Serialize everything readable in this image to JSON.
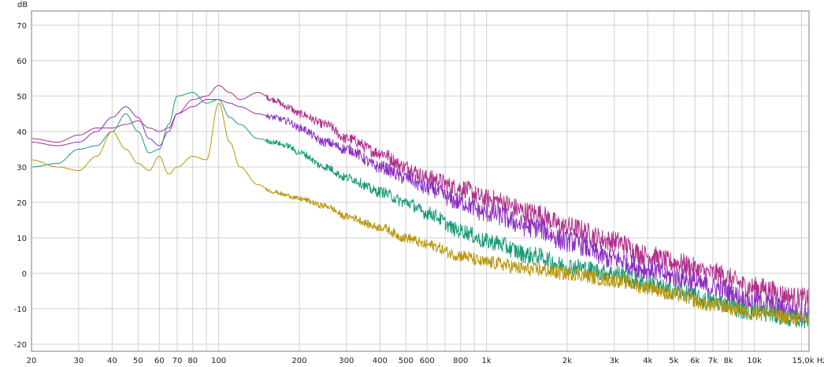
{
  "chart_data": {
    "type": "line",
    "ylabel": "dB",
    "x_scale": "log",
    "xlim": [
      20,
      16000
    ],
    "ylim": [
      -22,
      74
    ],
    "grid": true,
    "legend": "none",
    "yticks": [
      {
        "value": 70,
        "label": "70"
      },
      {
        "value": 60,
        "label": "60"
      },
      {
        "value": 50,
        "label": "50"
      },
      {
        "value": 40,
        "label": "40"
      },
      {
        "value": 30,
        "label": "30"
      },
      {
        "value": 20,
        "label": "20"
      },
      {
        "value": 10,
        "label": "10"
      },
      {
        "value": 0,
        "label": "0"
      },
      {
        "value": -10,
        "label": "-10"
      },
      {
        "value": -20,
        "label": "-20"
      }
    ],
    "xticks": [
      {
        "value": 20,
        "label": "20"
      },
      {
        "value": 30,
        "label": "30"
      },
      {
        "value": 40,
        "label": "40"
      },
      {
        "value": 50,
        "label": "50"
      },
      {
        "value": 60,
        "label": "60"
      },
      {
        "value": 70,
        "label": "70"
      },
      {
        "value": 80,
        "label": "80"
      },
      {
        "value": 100,
        "label": "100"
      },
      {
        "value": 200,
        "label": "200"
      },
      {
        "value": 300,
        "label": "300"
      },
      {
        "value": 400,
        "label": "400"
      },
      {
        "value": 500,
        "label": "500"
      },
      {
        "value": 600,
        "label": "600"
      },
      {
        "value": 800,
        "label": "800"
      },
      {
        "value": 1000,
        "label": "1k"
      },
      {
        "value": 2000,
        "label": "2k"
      },
      {
        "value": 3000,
        "label": "3k"
      },
      {
        "value": 4000,
        "label": "4k"
      },
      {
        "value": 5000,
        "label": "5k"
      },
      {
        "value": 6000,
        "label": "6k"
      },
      {
        "value": 7000,
        "label": "7k"
      },
      {
        "value": 8000,
        "label": "8k"
      },
      {
        "value": 10000,
        "label": "10k"
      },
      {
        "value": 15000,
        "label": "15,0k Hz"
      }
    ],
    "minor_x_grid": [
      90,
      700,
      900,
      9000
    ],
    "series": [
      {
        "color": "#b0308c",
        "noise": 3,
        "x": [
          20,
          25,
          30,
          35,
          40,
          45,
          50,
          55,
          60,
          65,
          70,
          80,
          90,
          100,
          110,
          120,
          140,
          160,
          180,
          200,
          250,
          300,
          400,
          500,
          600,
          800,
          1000,
          1500,
          2000,
          3000,
          4000,
          5000,
          7000,
          10000,
          15000
        ],
        "y": [
          38,
          37,
          39,
          41,
          41,
          42,
          43,
          41,
          40,
          41,
          45,
          49,
          50,
          53,
          51,
          49,
          51,
          49,
          47,
          45,
          42,
          38,
          34,
          30,
          27,
          24,
          21,
          17,
          13,
          9,
          5,
          3,
          0,
          -4,
          -7
        ]
      },
      {
        "color": "#8a2fc0",
        "noise": 3,
        "x": [
          20,
          25,
          30,
          35,
          40,
          45,
          50,
          55,
          60,
          65,
          70,
          80,
          90,
          100,
          110,
          120,
          140,
          160,
          180,
          200,
          250,
          300,
          400,
          500,
          600,
          800,
          1000,
          1500,
          2000,
          3000,
          4000,
          5000,
          7000,
          10000,
          15000
        ],
        "y": [
          37,
          36,
          37,
          40,
          44,
          47,
          44,
          38,
          36,
          40,
          45,
          47,
          49,
          49,
          48,
          47,
          45,
          44,
          43,
          41,
          37,
          35,
          30,
          27,
          24,
          20,
          17,
          13,
          9,
          4,
          1,
          -1,
          -4,
          -8,
          -11
        ]
      },
      {
        "color": "#1a9a78",
        "noise": 2.5,
        "x": [
          20,
          25,
          30,
          35,
          40,
          45,
          50,
          55,
          60,
          65,
          70,
          80,
          90,
          100,
          110,
          120,
          140,
          160,
          180,
          200,
          250,
          300,
          400,
          500,
          600,
          800,
          1000,
          1500,
          2000,
          3000,
          4000,
          5000,
          7000,
          10000,
          15000
        ],
        "y": [
          30,
          31,
          35,
          36,
          40,
          45,
          40,
          34,
          35,
          42,
          50,
          51,
          48,
          49,
          44,
          42,
          38,
          37,
          36,
          34,
          30,
          27,
          23,
          20,
          17,
          12,
          9,
          5,
          2,
          0,
          -3,
          -5,
          -8,
          -11,
          -13
        ]
      },
      {
        "color": "#b8960a",
        "noise": 2,
        "x": [
          20,
          25,
          30,
          35,
          40,
          45,
          50,
          55,
          60,
          65,
          70,
          80,
          90,
          100,
          110,
          120,
          140,
          160,
          180,
          200,
          250,
          300,
          400,
          500,
          600,
          800,
          1000,
          1500,
          2000,
          3000,
          4000,
          5000,
          7000,
          10000,
          15000
        ],
        "y": [
          32,
          30,
          29,
          33,
          40,
          35,
          31,
          29,
          33,
          28,
          30,
          33,
          32,
          48,
          37,
          30,
          25,
          23,
          22,
          21,
          19,
          16,
          13,
          10,
          8,
          5,
          3,
          1,
          0,
          -2,
          -4,
          -6,
          -9,
          -11,
          -13
        ]
      }
    ]
  }
}
